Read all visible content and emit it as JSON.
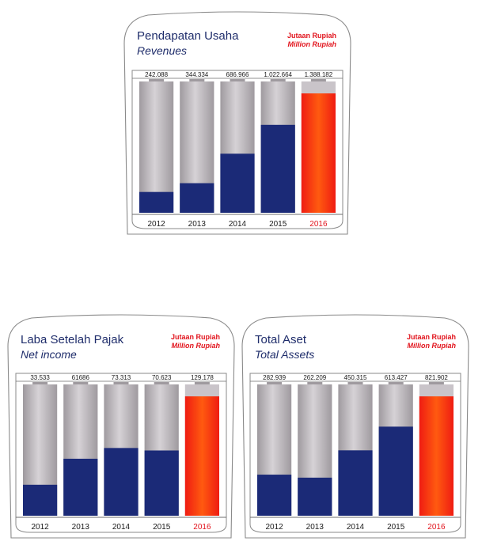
{
  "colors": {
    "navy": "#1b2a77",
    "gray_light": "#d6d2d6",
    "gray_dark": "#9f9a9f",
    "highlight_red": "#ef1c12",
    "highlight_orange": "#ff5a10",
    "title": "#1f2d6b",
    "unit": "#e2141d"
  },
  "chart_data": [
    {
      "type": "bar",
      "title": "Pendapatan Usaha",
      "subtitle": "Revenues",
      "unit_id": "Jutaan Rupiah",
      "unit_en": "Million Rupiah",
      "categories": [
        "2012",
        "2013",
        "2014",
        "2015",
        "2016"
      ],
      "values": [
        242088,
        344334,
        686966,
        1022664,
        1388182
      ],
      "value_labels": [
        "242.088",
        "344.334",
        "686.966",
        "1.022.664",
        "1.388.182"
      ],
      "highlight_index": 4
    },
    {
      "type": "bar",
      "title": "Laba Setelah Pajak",
      "subtitle": "Net income",
      "unit_id": "Jutaan Rupiah",
      "unit_en": "Million Rupiah",
      "categories": [
        "2012",
        "2013",
        "2014",
        "2015",
        "2016"
      ],
      "values": [
        33533,
        61686,
        73313,
        70623,
        129178
      ],
      "value_labels": [
        "33.533",
        "61686",
        "73.313",
        "70.623",
        "129.178"
      ],
      "highlight_index": 4
    },
    {
      "type": "bar",
      "title": "Total Aset",
      "subtitle": "Total Assets",
      "unit_id": "Jutaan Rupiah",
      "unit_en": "Million Rupiah",
      "categories": [
        "2012",
        "2013",
        "2014",
        "2015",
        "2016"
      ],
      "values": [
        282939,
        262209,
        450315,
        613427,
        821902
      ],
      "value_labels": [
        "282.939",
        "262.209",
        "450.315",
        "613.427",
        "821.902"
      ],
      "highlight_index": 4
    }
  ]
}
